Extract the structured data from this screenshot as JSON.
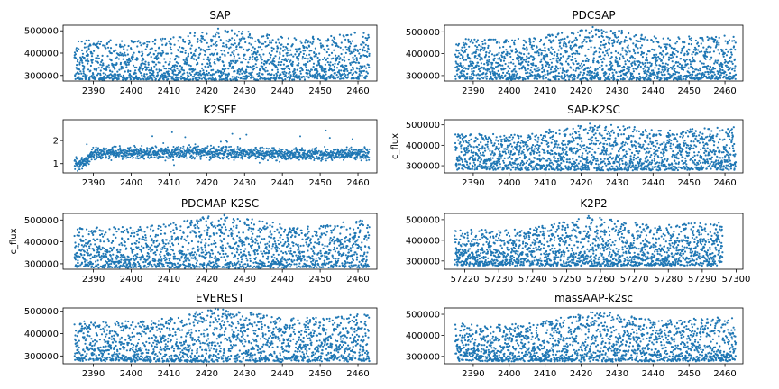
{
  "chart_data": [
    {
      "type": "scatter",
      "title": "SAP",
      "ylabel": "",
      "xlim": [
        2382,
        2465
      ],
      "ylim": [
        275000,
        525000
      ],
      "xticks": [
        2390,
        2400,
        2410,
        2420,
        2430,
        2440,
        2450,
        2460
      ],
      "xtick_labels": [
        "2390",
        "2400",
        "2410",
        "2420",
        "2430",
        "2440",
        "2450",
        "2460"
      ],
      "yticks": [
        300000,
        400000,
        500000
      ],
      "ytick_labels": [
        "300000",
        "400000",
        "500000"
      ],
      "series": [
        {
          "kind": "envelope",
          "x_range": [
            2385,
            2463
          ],
          "lower": [
            282000,
            282000,
            280000,
            282000,
            284000
          ],
          "upper": [
            455000,
            455000,
            515000,
            470000,
            500000
          ],
          "color": "#1f77b4"
        }
      ]
    },
    {
      "type": "scatter",
      "title": "PDCSAP",
      "ylabel": "",
      "xlim": [
        2382,
        2465
      ],
      "ylim": [
        275000,
        530000
      ],
      "xticks": [
        2390,
        2400,
        2410,
        2420,
        2430,
        2440,
        2450,
        2460
      ],
      "xtick_labels": [
        "2390",
        "2400",
        "2410",
        "2420",
        "2430",
        "2440",
        "2450",
        "2460"
      ],
      "yticks": [
        300000,
        400000,
        500000
      ],
      "ytick_labels": [
        "300000",
        "400000",
        "500000"
      ],
      "series": [
        {
          "kind": "envelope",
          "x_range": [
            2385,
            2463
          ],
          "lower": [
            285000,
            283000,
            280000,
            283000,
            285000
          ],
          "upper": [
            465000,
            470000,
            525000,
            470000,
            500000
          ],
          "color": "#1f77b4"
        }
      ]
    },
    {
      "type": "scatter",
      "title": "K2SFF",
      "ylabel": "",
      "xlim": [
        2382,
        2465
      ],
      "ylim": [
        0.6,
        2.9
      ],
      "xticks": [
        2390,
        2400,
        2410,
        2420,
        2430,
        2440,
        2450,
        2460
      ],
      "xtick_labels": [
        "2390",
        "2400",
        "2410",
        "2420",
        "2430",
        "2440",
        "2450",
        "2460"
      ],
      "yticks": [
        1,
        2
      ],
      "ytick_labels": [
        "1",
        "2"
      ],
      "series": [
        {
          "kind": "noisy",
          "x_range": [
            2385,
            2463
          ],
          "baseline": [
            [
              2385,
              0.95
            ],
            [
              2388,
              1.1
            ],
            [
              2390,
              1.45
            ],
            [
              2400,
              1.45
            ],
            [
              2420,
              1.5
            ],
            [
              2440,
              1.4
            ],
            [
              2463,
              1.4
            ]
          ],
          "spread": 0.25,
          "color": "#1f77b4"
        }
      ]
    },
    {
      "type": "scatter",
      "title": "SAP-K2SC",
      "ylabel": "c_flux",
      "xlim": [
        2382,
        2465
      ],
      "ylim": [
        265000,
        525000
      ],
      "xticks": [
        2390,
        2400,
        2410,
        2420,
        2430,
        2440,
        2450,
        2460
      ],
      "xtick_labels": [
        "2390",
        "2400",
        "2410",
        "2420",
        "2430",
        "2440",
        "2450",
        "2460"
      ],
      "yticks": [
        300000,
        400000,
        500000
      ],
      "ytick_labels": [
        "300000",
        "400000",
        "500000"
      ],
      "series": [
        {
          "kind": "envelope",
          "x_range": [
            2385,
            2463
          ],
          "lower": [
            282000,
            280000,
            278000,
            280000,
            282000
          ],
          "upper": [
            455000,
            455000,
            515000,
            470000,
            495000
          ],
          "color": "#1f77b4"
        }
      ]
    },
    {
      "type": "scatter",
      "title": "PDCMAP-K2SC",
      "ylabel": "c_flux",
      "xlim": [
        2382,
        2465
      ],
      "ylim": [
        275000,
        530000
      ],
      "xticks": [
        2390,
        2400,
        2410,
        2420,
        2430,
        2440,
        2450,
        2460
      ],
      "xtick_labels": [
        "2390",
        "2400",
        "2410",
        "2420",
        "2430",
        "2440",
        "2450",
        "2460"
      ],
      "yticks": [
        300000,
        400000,
        500000
      ],
      "ytick_labels": [
        "300000",
        "400000",
        "500000"
      ],
      "series": [
        {
          "kind": "envelope",
          "x_range": [
            2385,
            2463
          ],
          "lower": [
            285000,
            283000,
            282000,
            283000,
            285000
          ],
          "upper": [
            465000,
            470000,
            525000,
            470000,
            500000
          ],
          "color": "#1f77b4"
        }
      ]
    },
    {
      "type": "scatter",
      "title": "K2P2",
      "ylabel": "",
      "xlim": [
        57214,
        57302
      ],
      "ylim": [
        260000,
        530000
      ],
      "xticks": [
        57220,
        57230,
        57240,
        57250,
        57260,
        57270,
        57280,
        57290,
        57300
      ],
      "xtick_labels": [
        "57220",
        "57230",
        "57240",
        "57250",
        "57260",
        "57270",
        "57280",
        "57290",
        "57300"
      ],
      "yticks": [
        300000,
        400000,
        500000
      ],
      "ytick_labels": [
        "300000",
        "400000",
        "500000"
      ],
      "series": [
        {
          "kind": "envelope",
          "x_range": [
            57217,
            57296
          ],
          "lower": [
            280000,
            278000,
            276000,
            278000,
            280000
          ],
          "upper": [
            450000,
            450000,
            515000,
            470000,
            495000
          ],
          "color": "#1f77b4"
        }
      ]
    },
    {
      "type": "scatter",
      "title": "EVEREST",
      "ylabel": "",
      "xlim": [
        2382,
        2465
      ],
      "ylim": [
        265000,
        515000
      ],
      "xticks": [
        2390,
        2400,
        2410,
        2420,
        2430,
        2440,
        2450,
        2460
      ],
      "xtick_labels": [
        "2390",
        "2400",
        "2410",
        "2420",
        "2430",
        "2440",
        "2450",
        "2460"
      ],
      "yticks": [
        300000,
        400000,
        500000
      ],
      "ytick_labels": [
        "300000",
        "400000",
        "500000"
      ],
      "series": [
        {
          "kind": "envelope",
          "x_range": [
            2385,
            2463
          ],
          "lower": [
            278000,
            276000,
            275000,
            276000,
            278000
          ],
          "upper": [
            455000,
            455000,
            515000,
            470000,
            490000
          ],
          "color": "#1f77b4"
        }
      ]
    },
    {
      "type": "scatter",
      "title": "massAAP-k2sc",
      "ylabel": "",
      "xlim": [
        2382,
        2465
      ],
      "ylim": [
        265000,
        530000
      ],
      "xticks": [
        2390,
        2400,
        2410,
        2420,
        2430,
        2440,
        2450,
        2460
      ],
      "xtick_labels": [
        "2390",
        "2400",
        "2410",
        "2420",
        "2430",
        "2440",
        "2450",
        "2460"
      ],
      "yticks": [
        300000,
        400000,
        500000
      ],
      "ytick_labels": [
        "300000",
        "400000",
        "500000"
      ],
      "series": [
        {
          "kind": "envelope",
          "x_range": [
            2385,
            2463
          ],
          "lower": [
            280000,
            278000,
            277000,
            278000,
            280000
          ],
          "upper": [
            455000,
            455000,
            515000,
            470000,
            490000
          ],
          "color": "#1f77b4"
        }
      ]
    }
  ]
}
